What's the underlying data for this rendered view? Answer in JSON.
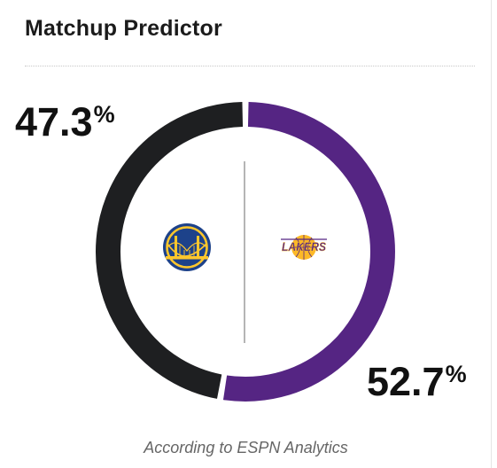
{
  "widget": {
    "title": "Matchup Predictor",
    "footer": "According to ESPN Analytics"
  },
  "prediction": {
    "away": {
      "team_icon": "golden-state-warriors-logo",
      "percent_value": 47.3,
      "percent_number": "47.3",
      "percent_symbol": "%",
      "color": "#1e1f21"
    },
    "home": {
      "team_icon": "los-angeles-lakers-logo",
      "team_logo_text": "LAKERS",
      "percent_value": 52.7,
      "percent_number": "52.7",
      "percent_symbol": "%",
      "color": "#552583"
    }
  },
  "colors": {
    "divider": "#c8c8c8",
    "center_line": "#b5b5b5",
    "warriors_blue": "#1d428a",
    "warriors_gold": "#ffc72c",
    "lakers_purple": "#552583",
    "lakers_gold": "#fdb927"
  }
}
